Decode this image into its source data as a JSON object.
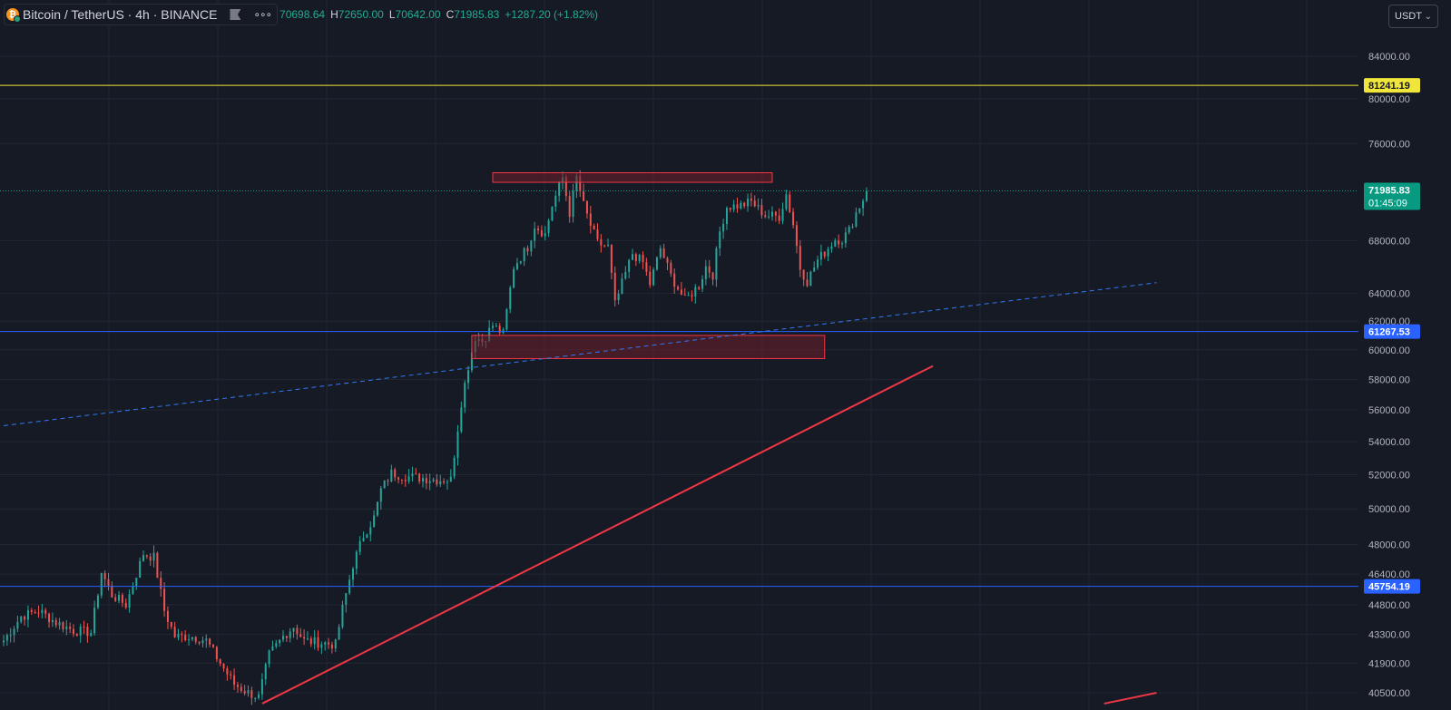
{
  "legend": {
    "symbol": "Bitcoin / TetherUS · 4h · BINANCE",
    "coin_icon_glyph": "₿",
    "more_glyph": "∘∘∘",
    "open_label": "",
    "open_value": "70698.64",
    "high_label": "H",
    "high_value": "72650.00",
    "low_label": "L",
    "low_value": "70642.00",
    "close_label": "C",
    "close_value": "71985.83",
    "change": "+1287.20 (+1.82%)"
  },
  "currency_selector": {
    "label": "USDT",
    "chevron": "⌄"
  },
  "colors": {
    "background": "#161a25",
    "grid": "#232733",
    "candle_up": "#26a69a",
    "candle_down": "#ef5350",
    "horizontal_yellow": "#f0e53a",
    "horizontal_blue": "#2962ff",
    "trendline_red": "#f23645",
    "dashed_line": "#3179f5",
    "zone_fill": "#6d1f2a",
    "zone_border": "#f23645",
    "price_label": "#089981"
  },
  "icons": [
    "bitcoin-icon",
    "flag-icon",
    "more-icon",
    "chevron-down-icon"
  ],
  "chart_data": {
    "type": "candlestick",
    "symbol": "Bitcoin / TetherUS",
    "interval": "4h",
    "exchange": "BINANCE",
    "y_scale": "log",
    "ylim": [
      40000,
      88000
    ],
    "grid": true,
    "y_ticks": [
      "84000.00",
      "80000.00",
      "76000.00",
      "68000.00",
      "64000.00",
      "62000.00",
      "60000.00",
      "58000.00",
      "56000.00",
      "54000.00",
      "52000.00",
      "50000.00",
      "48000.00",
      "46400.00",
      "44800.00",
      "43300.00",
      "41900.00",
      "40500.00"
    ],
    "price_labels": [
      {
        "text": "81241.19",
        "value": 81241.19,
        "color": "#f0e53a",
        "text_color": "#131722"
      },
      {
        "text": "71985.83",
        "sub": "01:45:09",
        "value": 71985.83,
        "color": "#089981",
        "text_color": "#ffffff"
      },
      {
        "text": "61267.53",
        "value": 61267.53,
        "color": "#2962ff",
        "text_color": "#ffffff"
      },
      {
        "text": "45754.19",
        "value": 45754.19,
        "color": "#2962ff",
        "text_color": "#ffffff"
      }
    ],
    "horizontal_lines": [
      {
        "value": 81241.19,
        "color": "#f0e53a",
        "style": "solid"
      },
      {
        "value": 71985.83,
        "color": "#089981",
        "style": "dotted"
      },
      {
        "value": 61267.53,
        "color": "#2962ff",
        "style": "solid"
      },
      {
        "value": 45754.19,
        "color": "#2962ff",
        "style": "solid"
      }
    ],
    "zones": [
      {
        "bar_from": 140,
        "bar_to": 220,
        "high": 73500,
        "low": 72700
      },
      {
        "bar_from": 134,
        "bar_to": 235,
        "high": 61000,
        "low": 59400
      }
    ],
    "trendlines": [
      {
        "bar_from": 74,
        "value_from": 40000,
        "bar_to": 266,
        "value_to": 58900,
        "color": "#f23645",
        "style": "solid"
      },
      {
        "bar_from": 0,
        "value_from": 55000,
        "bar_to": 330,
        "value_to": 64800,
        "color": "#3179f5",
        "style": "dashed"
      },
      {
        "bar_from": 315,
        "value_from": 40000,
        "bar_to": 330,
        "value_to": 40500,
        "color": "#f23645",
        "style": "solid"
      }
    ],
    "close_path": [
      [
        0,
        43000
      ],
      [
        5,
        44200
      ],
      [
        10,
        44500
      ],
      [
        15,
        43900
      ],
      [
        20,
        43500
      ],
      [
        25,
        43400
      ],
      [
        28,
        46500
      ],
      [
        31,
        45300
      ],
      [
        35,
        44800
      ],
      [
        40,
        47500
      ],
      [
        43,
        47300
      ],
      [
        46,
        44500
      ],
      [
        49,
        43200
      ],
      [
        54,
        43200
      ],
      [
        58,
        43000
      ],
      [
        62,
        41900
      ],
      [
        66,
        40900
      ],
      [
        70,
        40500
      ],
      [
        73,
        40300
      ],
      [
        76,
        42300
      ],
      [
        80,
        43200
      ],
      [
        83,
        43700
      ],
      [
        86,
        43000
      ],
      [
        90,
        42900
      ],
      [
        95,
        42800
      ],
      [
        97,
        44600
      ],
      [
        100,
        46900
      ],
      [
        103,
        48500
      ],
      [
        106,
        49500
      ],
      [
        108,
        51100
      ],
      [
        111,
        52100
      ],
      [
        115,
        51900
      ],
      [
        120,
        51800
      ],
      [
        124,
        51700
      ],
      [
        128,
        51700
      ],
      [
        131,
        56500
      ],
      [
        133,
        58900
      ],
      [
        135,
        60900
      ],
      [
        137,
        60600
      ],
      [
        140,
        61700
      ],
      [
        143,
        61100
      ],
      [
        146,
        66000
      ],
      [
        150,
        67500
      ],
      [
        152,
        69200
      ],
      [
        155,
        68500
      ],
      [
        157,
        70800
      ],
      [
        160,
        73100
      ],
      [
        162,
        70200
      ],
      [
        164,
        73100
      ],
      [
        166,
        70800
      ],
      [
        168,
        69200
      ],
      [
        170,
        67800
      ],
      [
        173,
        67500
      ],
      [
        175,
        63200
      ],
      [
        178,
        65500
      ],
      [
        180,
        67000
      ],
      [
        183,
        66300
      ],
      [
        185,
        64700
      ],
      [
        188,
        67400
      ],
      [
        191,
        65300
      ],
      [
        195,
        63500
      ],
      [
        199,
        64600
      ],
      [
        201,
        66000
      ],
      [
        203,
        65400
      ],
      [
        205,
        68700
      ],
      [
        207,
        70700
      ],
      [
        211,
        70800
      ],
      [
        214,
        71100
      ],
      [
        218,
        70000
      ],
      [
        222,
        69900
      ],
      [
        224,
        71700
      ],
      [
        226,
        69300
      ],
      [
        228,
        65900
      ],
      [
        230,
        64900
      ],
      [
        233,
        66500
      ],
      [
        235,
        67100
      ],
      [
        238,
        68100
      ],
      [
        240,
        68100
      ],
      [
        242,
        68800
      ],
      [
        244,
        70200
      ],
      [
        246,
        71300
      ],
      [
        247,
        71985.83
      ]
    ]
  }
}
